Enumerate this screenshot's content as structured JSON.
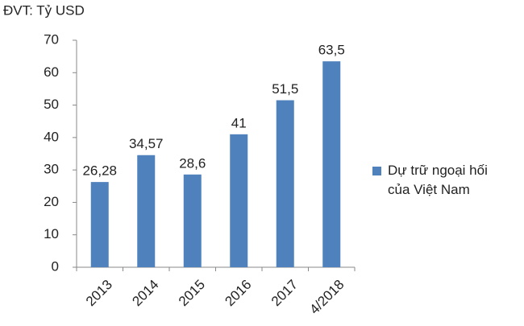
{
  "chart_data": {
    "type": "bar",
    "y_axis_label": "ĐVT: Tỷ USD",
    "categories": [
      "2013",
      "2014",
      "2015",
      "2016",
      "2017",
      "4/2018"
    ],
    "series": [
      {
        "name": "Dự trữ ngoại hối của Việt Nam",
        "color": "#4f81bd",
        "values": [
          26.28,
          34.57,
          28.6,
          41,
          51.5,
          63.5
        ],
        "value_labels": [
          "26,28",
          "34,57",
          "28,6",
          "41",
          "51,5",
          "63,5"
        ]
      }
    ],
    "ylim": [
      0,
      70
    ],
    "yticks": [
      0,
      10,
      20,
      30,
      40,
      50,
      60,
      70
    ],
    "grid": false,
    "legend": "right"
  }
}
